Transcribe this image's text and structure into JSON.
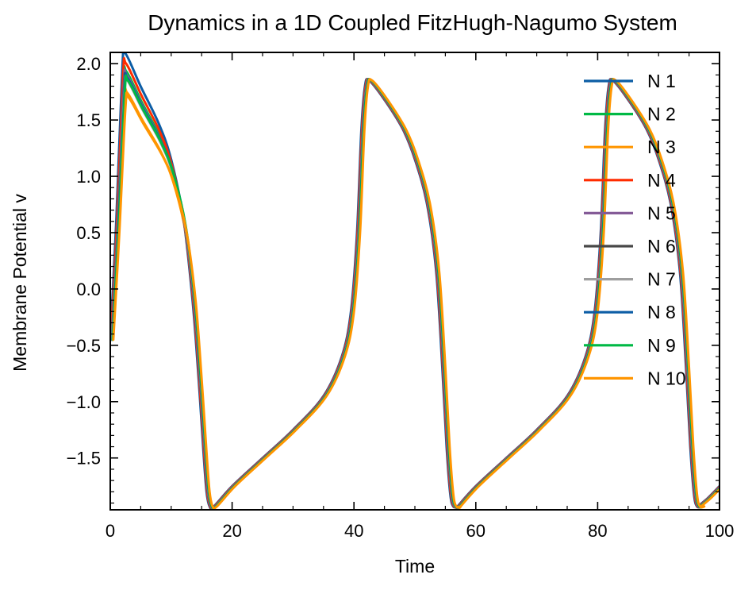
{
  "chart_data": {
    "type": "line",
    "title": "Dynamics in a 1D Coupled FitzHugh-Nagumo System",
    "xlabel": "Time",
    "ylabel": "Membrane Potential v",
    "xlim": [
      0,
      100
    ],
    "ylim": [
      -1.96,
      2.1
    ],
    "xticks": [
      0,
      20,
      40,
      60,
      80,
      100
    ],
    "xtick_labels": [
      "0",
      "20",
      "40",
      "60",
      "80",
      "100"
    ],
    "yticks": [
      2.0,
      1.5,
      1.0,
      0.5,
      0.0,
      -0.5,
      -1.0,
      -1.5
    ],
    "ytick_labels": [
      "2.0",
      "1.5",
      "1.0",
      "0.5",
      "0.0",
      "−0.5",
      "−1.0",
      "−1.5"
    ],
    "grid": false,
    "legend_position": "top-right",
    "series": [
      {
        "name": "N 1",
        "color": "#0C5DA5",
        "peak": 2.09,
        "delay": 0.0
      },
      {
        "name": "N 2",
        "color": "#00B945",
        "peak": 1.93,
        "delay": 0.15
      },
      {
        "name": "N 3",
        "color": "#FF9500",
        "peak": 1.74,
        "delay": 0.3
      },
      {
        "name": "N 4",
        "color": "#FF2C00",
        "peak": 2.0,
        "delay": 0.1
      },
      {
        "name": "N 5",
        "color": "#845B97",
        "peak": 1.9,
        "delay": 0.2
      },
      {
        "name": "N 6",
        "color": "#474747",
        "peak": 1.87,
        "delay": 0.25
      },
      {
        "name": "N 7",
        "color": "#9E9E9E",
        "peak": 1.85,
        "delay": 0.3
      },
      {
        "name": "N 8",
        "color": "#0C5DA5",
        "peak": 1.87,
        "delay": 0.35
      },
      {
        "name": "N 9",
        "color": "#00B945",
        "peak": 1.85,
        "delay": 0.4
      },
      {
        "name": "N 10",
        "color": "#FF9500",
        "peak": 1.7,
        "delay": 0.5
      }
    ],
    "waveform_keypoints": {
      "first_cycle": {
        "t": [
          0,
          1,
          2,
          2.5,
          5,
          8,
          10,
          12,
          13.5,
          14.5,
          15.3,
          15.8,
          16.3,
          17
        ],
        "v_scaled_from_peak": true
      },
      "shared_cycle": {
        "t": [
          17,
          20,
          25,
          30,
          35,
          38,
          39.5,
          40.5,
          41.2,
          41.8,
          42.5,
          45,
          48,
          50,
          52,
          53.5,
          54.5,
          55.2,
          55.8,
          56.3,
          57
        ],
        "v": [
          -1.93,
          -1.75,
          -1.5,
          -1.25,
          -0.95,
          -0.6,
          -0.2,
          0.5,
          1.4,
          1.8,
          1.85,
          1.68,
          1.42,
          1.15,
          0.75,
          0.15,
          -0.7,
          -1.4,
          -1.82,
          -1.93,
          -1.93
        ]
      },
      "final_segment": {
        "t": [
          96.5,
          98,
          100
        ],
        "v": [
          -1.93,
          -1.86,
          -1.75
        ]
      },
      "cycle_period": 40
    }
  }
}
